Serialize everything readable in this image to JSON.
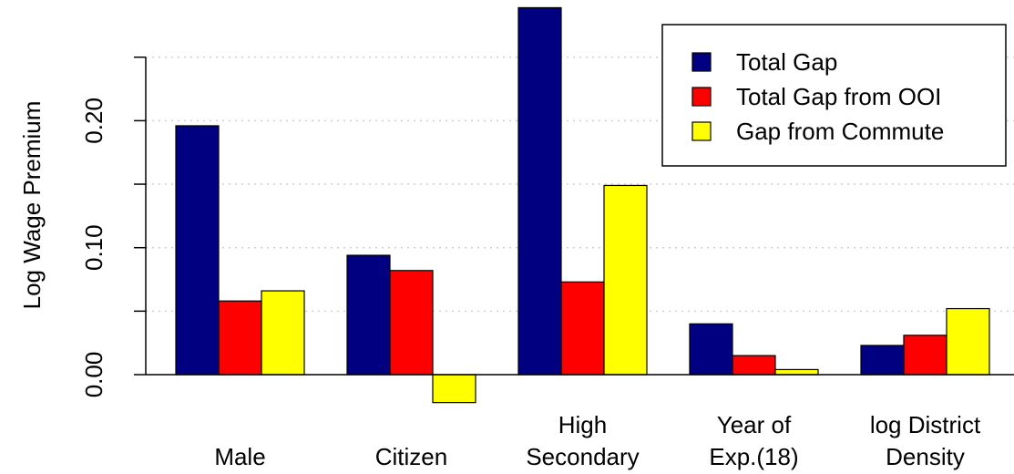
{
  "chart_data": {
    "type": "bar",
    "title": "",
    "xlabel": "",
    "ylabel": "Log Wage Premium",
    "categories": [
      [
        "Male"
      ],
      [
        "Citizen"
      ],
      [
        "High",
        "Secondary"
      ],
      [
        "Year of",
        "Exp.(18)"
      ],
      [
        "log District",
        "Density"
      ]
    ],
    "series": [
      {
        "name": "Total Gap",
        "color": "#000080",
        "values": [
          0.196,
          0.094,
          0.289,
          0.04,
          0.023
        ]
      },
      {
        "name": "Total Gap from OOI",
        "color": "#ff0000",
        "values": [
          0.058,
          0.082,
          0.073,
          0.015,
          0.031
        ]
      },
      {
        "name": "Gap from Commute",
        "color": "#ffff00",
        "values": [
          0.066,
          -0.022,
          0.149,
          0.004,
          0.052
        ]
      }
    ],
    "ylim": [
      -0.05,
      0.3
    ],
    "yticks": [
      0.0,
      0.1,
      0.2
    ],
    "ytick_labels": [
      "0.00",
      "0.10",
      "0.20"
    ],
    "grid": true,
    "legend_position": "top-right"
  }
}
